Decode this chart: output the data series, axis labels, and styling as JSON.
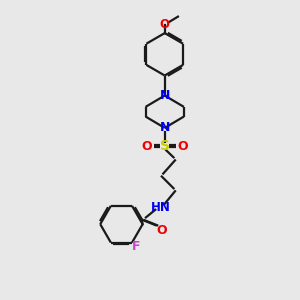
{
  "bg_color": "#e8e8e8",
  "bond_color": "#1a1a1a",
  "N_color": "#0000ee",
  "O_color": "#ee0000",
  "S_color": "#cccc00",
  "F_color": "#cc44cc",
  "line_width": 1.6,
  "figsize": [
    3.0,
    3.0
  ],
  "dpi": 100,
  "xlim": [
    0,
    10
  ],
  "ylim": [
    0,
    10
  ]
}
